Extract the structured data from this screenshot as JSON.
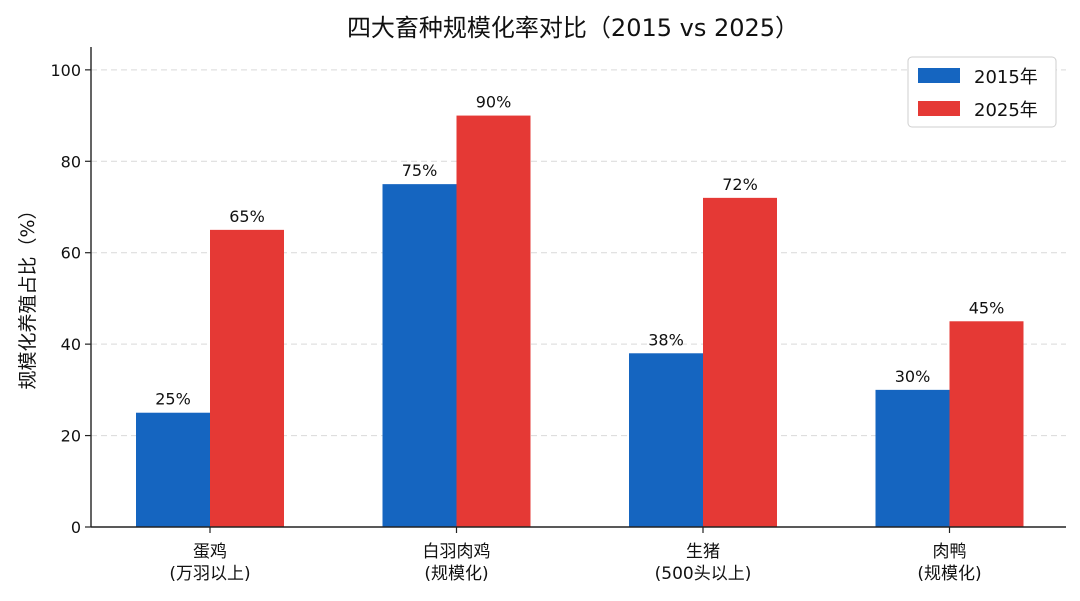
{
  "chart_data": {
    "type": "bar",
    "title": "四大畜种规模化率对比（2015 vs 2025）",
    "xlabel": "",
    "ylabel": "规模化养殖占比（%）",
    "ylim": [
      0,
      105
    ],
    "yticks": [
      0,
      20,
      40,
      60,
      80,
      100
    ],
    "grid": "y-dashed",
    "legend_position": "top-right",
    "categories": [
      [
        "蛋鸡",
        "(万羽以上)"
      ],
      [
        "白羽肉鸡",
        "(规模化)"
      ],
      [
        "生猪",
        "(500头以上)"
      ],
      [
        "肉鸭",
        "(规模化)"
      ]
    ],
    "series": [
      {
        "name": "2015年",
        "color": "#1565c0",
        "values": [
          25,
          75,
          38,
          30
        ],
        "labels": [
          "25%",
          "75%",
          "38%",
          "30%"
        ]
      },
      {
        "name": "2025年",
        "color": "#e53935",
        "values": [
          65,
          90,
          72,
          45
        ],
        "labels": [
          "65%",
          "90%",
          "72%",
          "45%"
        ]
      }
    ]
  }
}
